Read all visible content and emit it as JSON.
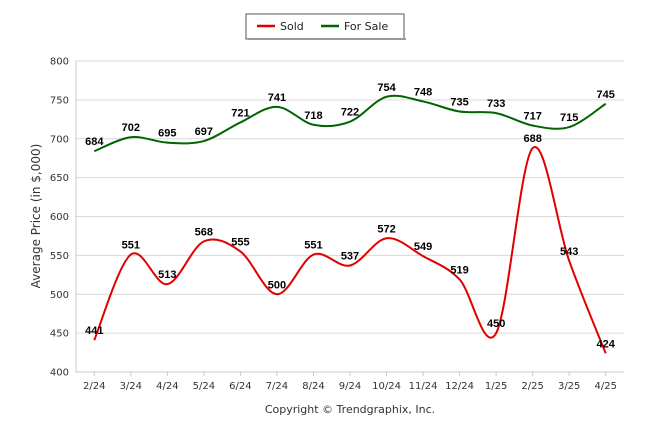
{
  "chart_data": {
    "type": "line",
    "categories": [
      "2/24",
      "3/24",
      "4/24",
      "5/24",
      "6/24",
      "7/24",
      "8/24",
      "9/24",
      "10/24",
      "11/24",
      "12/24",
      "1/25",
      "2/25",
      "3/25",
      "4/25"
    ],
    "series": [
      {
        "name": "Sold",
        "color": "#e00000",
        "values": [
          441,
          551,
          513,
          568,
          555,
          500,
          551,
          537,
          572,
          549,
          519,
          450,
          688,
          543,
          424
        ]
      },
      {
        "name": "For Sale",
        "color": "#006400",
        "values": [
          684,
          702,
          695,
          697,
          721,
          741,
          718,
          722,
          754,
          748,
          735,
          733,
          717,
          715,
          745
        ]
      }
    ],
    "ylabel": "Average Price (in $,000)",
    "xlabel": "",
    "ylim": [
      400,
      800
    ],
    "yticks": [
      400,
      450,
      500,
      550,
      600,
      650,
      700,
      750,
      800
    ],
    "grid": true,
    "legend_position": "top-center",
    "credit": "Copyright © Trendgraphix, Inc."
  }
}
